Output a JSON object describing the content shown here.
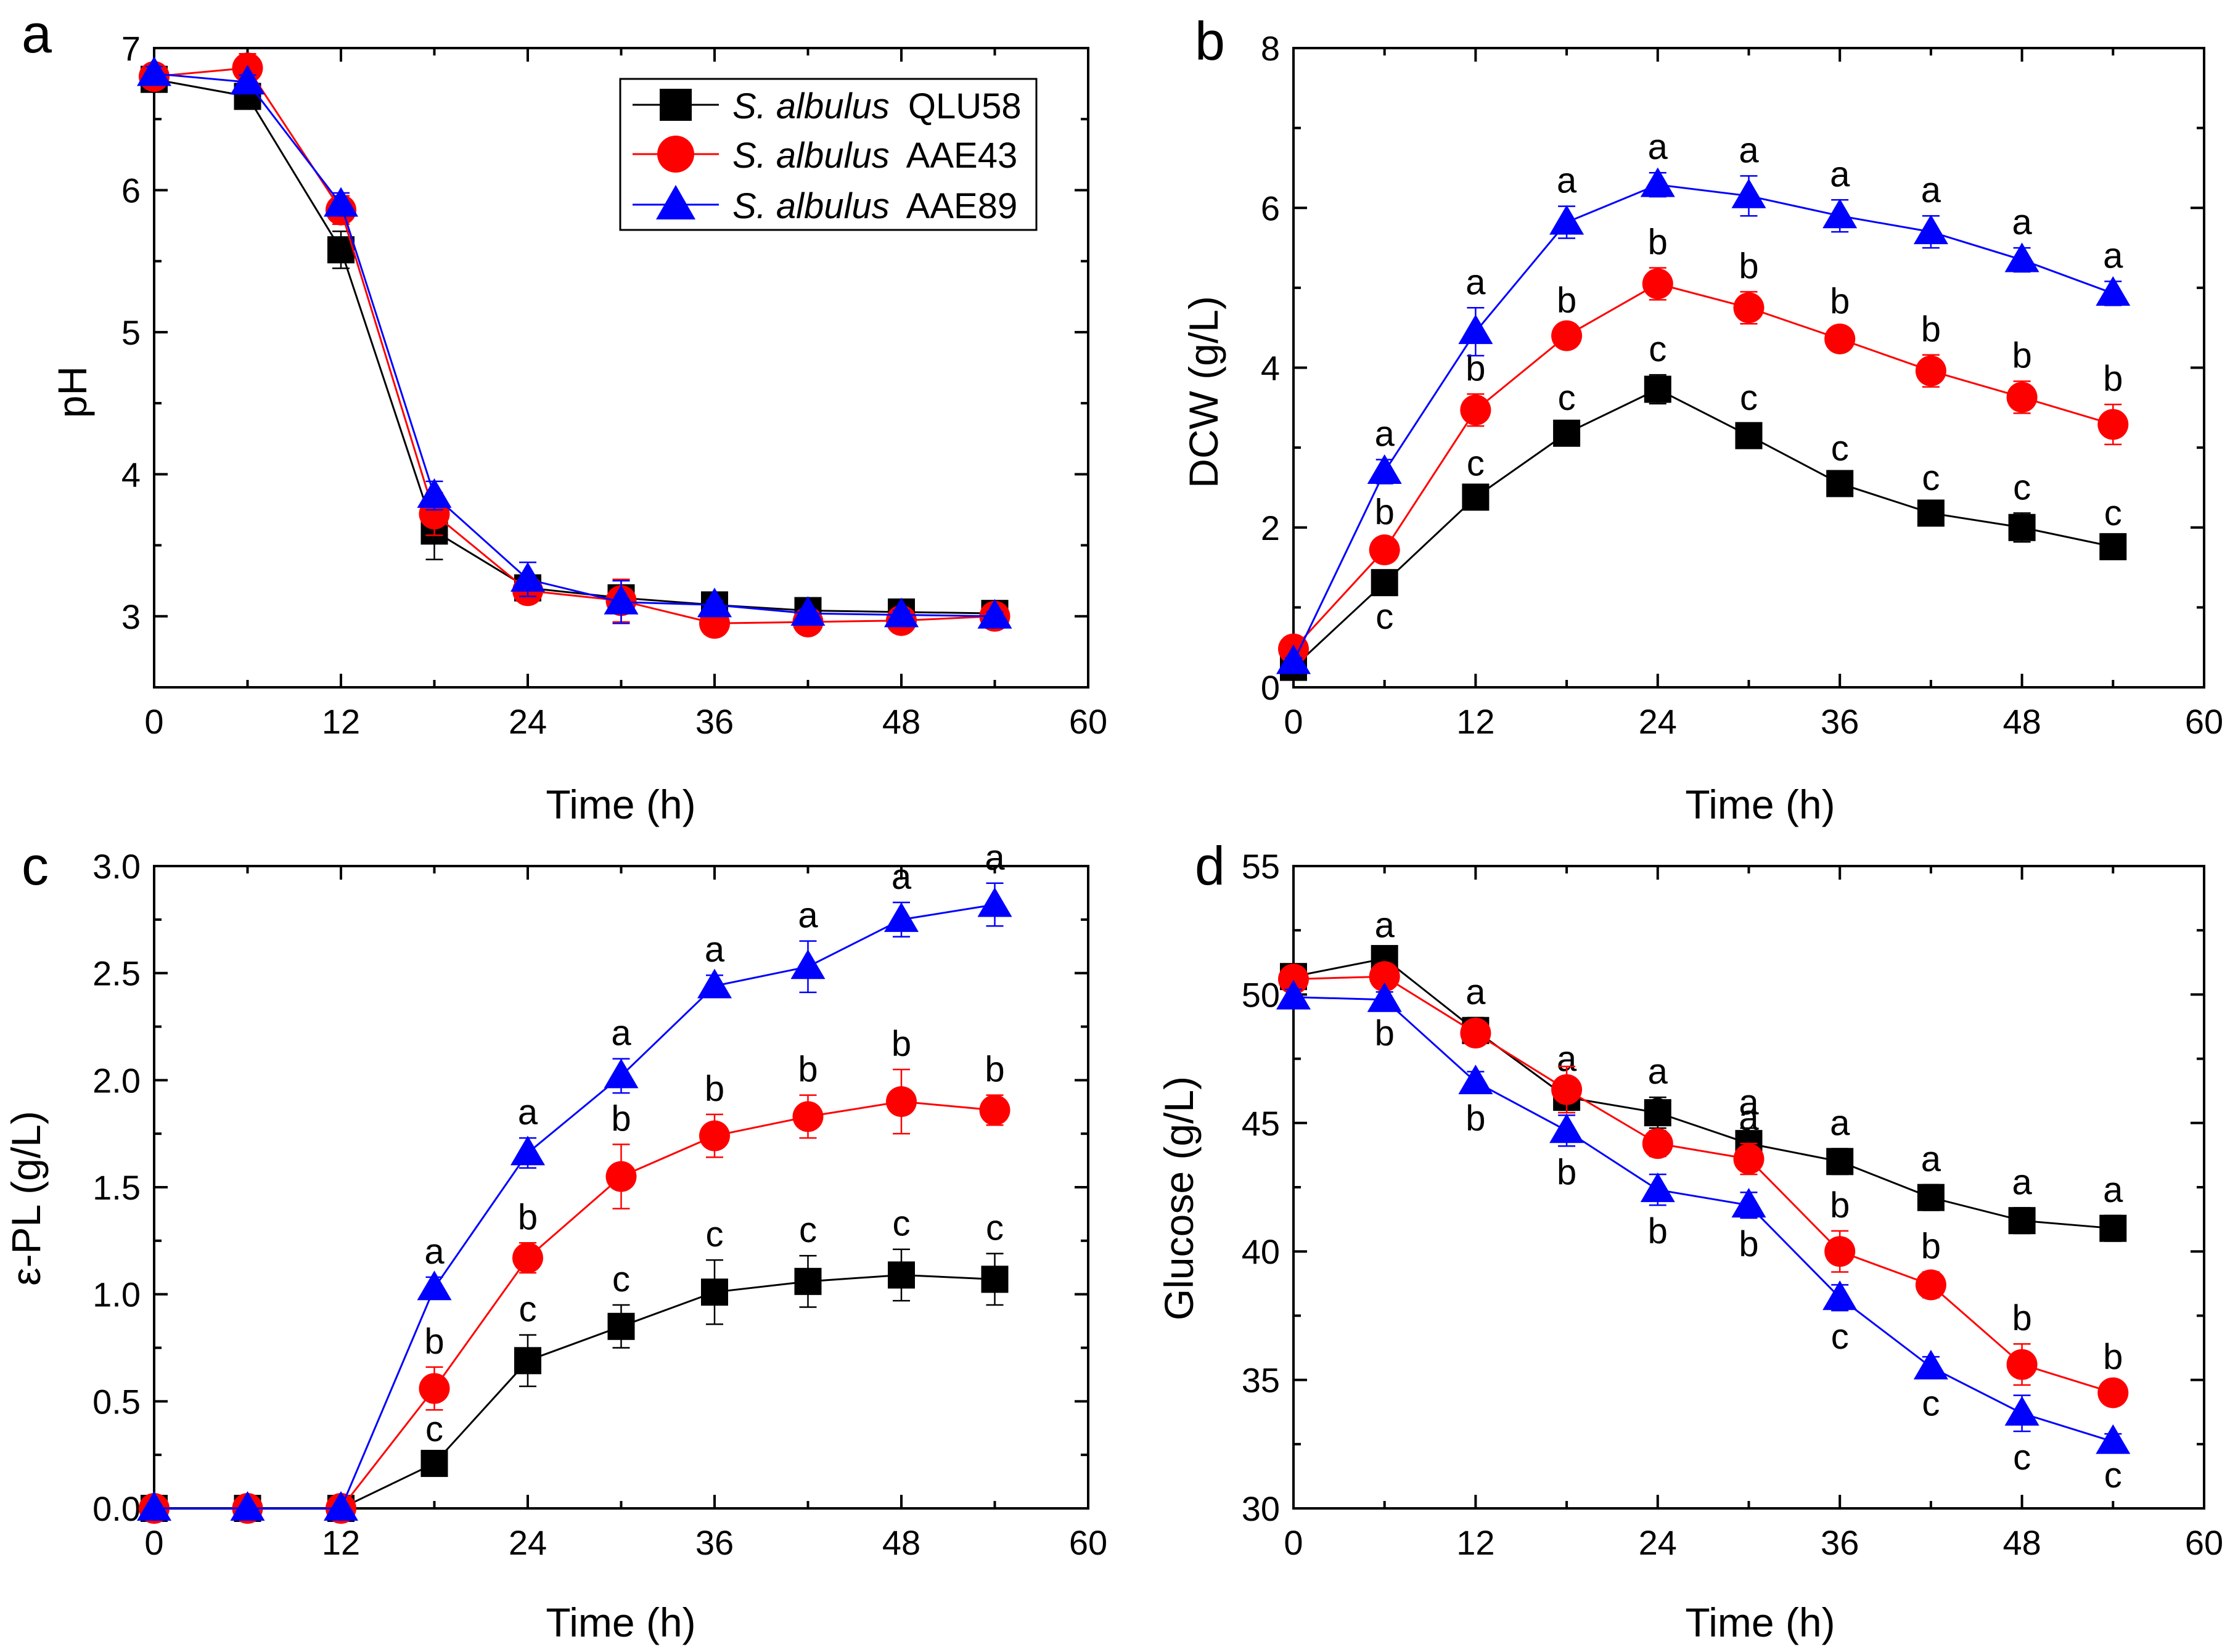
{
  "colors": {
    "QLU58": "#000000",
    "AAE43": "#ff0000",
    "AAE89": "#0000ff"
  },
  "legend": [
    {
      "italic": "S. albulus",
      "strain": "QLU58",
      "marker": "square"
    },
    {
      "italic": "S. albulus",
      "strain": "AAE43",
      "marker": "circle"
    },
    {
      "italic": "S. albulus",
      "strain": "AAE89",
      "marker": "triangle"
    }
  ],
  "chart_data": [
    {
      "panel": "a",
      "type": "line",
      "xlabel": "Time (h)",
      "ylabel": "pH",
      "xlim": [
        0,
        60
      ],
      "ylim": [
        2.5,
        7
      ],
      "xticks": [
        0,
        12,
        24,
        36,
        48,
        60
      ],
      "yticks": [
        3,
        4,
        5,
        6,
        7
      ],
      "legend_position": "top-right",
      "x": [
        0,
        6,
        12,
        18,
        24,
        30,
        36,
        42,
        48,
        54
      ],
      "series": [
        {
          "name": "QLU58",
          "marker": "square",
          "values": [
            6.78,
            6.66,
            5.58,
            3.6,
            3.2,
            3.13,
            3.08,
            3.04,
            3.03,
            3.02
          ],
          "errors": [
            0.05,
            0.05,
            0.13,
            0.2,
            0.08,
            0.06,
            0.04,
            0.03,
            0.03,
            0.03
          ],
          "labels": []
        },
        {
          "name": "AAE43",
          "marker": "circle",
          "values": [
            6.8,
            6.86,
            5.86,
            3.72,
            3.18,
            3.11,
            2.95,
            2.96,
            2.97,
            3.0
          ],
          "errors": [
            0.05,
            0.1,
            0.1,
            0.15,
            0.08,
            0.15,
            0.03,
            0.03,
            0.03,
            0.03
          ],
          "labels": []
        },
        {
          "name": "AAE89",
          "marker": "triangle",
          "values": [
            6.82,
            6.76,
            5.9,
            3.85,
            3.26,
            3.1,
            3.08,
            3.02,
            3.01,
            3.0
          ],
          "errors": [
            0.05,
            0.05,
            0.08,
            0.1,
            0.12,
            0.15,
            0.03,
            0.03,
            0.03,
            0.03
          ],
          "labels": []
        }
      ]
    },
    {
      "panel": "b",
      "type": "line",
      "xlabel": "Time (h)",
      "ylabel": "DCW (g/L)",
      "xlim": [
        0,
        60
      ],
      "ylim": [
        0,
        8
      ],
      "xticks": [
        0,
        12,
        24,
        36,
        48,
        60
      ],
      "yticks": [
        0,
        2,
        4,
        6,
        8
      ],
      "x": [
        0,
        6,
        12,
        18,
        24,
        30,
        36,
        42,
        48,
        54
      ],
      "series": [
        {
          "name": "QLU58",
          "marker": "square",
          "values": [
            0.25,
            1.31,
            2.38,
            3.18,
            3.73,
            3.15,
            2.55,
            2.18,
            2.0,
            1.76
          ],
          "errors": [
            0.05,
            0.1,
            0.1,
            0.12,
            0.18,
            0.15,
            0.12,
            0.12,
            0.18,
            0.1
          ],
          "labels": [
            "",
            "c",
            "c",
            "c",
            "c",
            "c",
            "c",
            "c",
            "c",
            "c"
          ],
          "label_pos": [
            "above",
            "below",
            "above",
            "above",
            "above",
            "above",
            "above",
            "above",
            "above",
            "above"
          ]
        },
        {
          "name": "AAE43",
          "marker": "circle",
          "values": [
            0.48,
            1.72,
            3.47,
            4.4,
            5.05,
            4.75,
            4.36,
            3.96,
            3.63,
            3.29
          ],
          "errors": [
            0.05,
            0.15,
            0.2,
            0.12,
            0.2,
            0.2,
            0.15,
            0.2,
            0.2,
            0.25
          ],
          "labels": [
            "",
            "b",
            "b",
            "b",
            "b",
            "b",
            "b",
            "b",
            "b",
            "b"
          ],
          "label_pos": [
            "above",
            "above",
            "above",
            "above",
            "above",
            "above",
            "above",
            "above",
            "above",
            "above"
          ]
        },
        {
          "name": "AAE89",
          "marker": "triangle",
          "values": [
            0.32,
            2.7,
            4.45,
            5.82,
            6.29,
            6.15,
            5.9,
            5.7,
            5.35,
            4.93
          ],
          "errors": [
            0.05,
            0.15,
            0.3,
            0.2,
            0.15,
            0.25,
            0.2,
            0.2,
            0.15,
            0.15
          ],
          "labels": [
            "",
            "a",
            "a",
            "a",
            "a",
            "a",
            "a",
            "a",
            "a",
            "a"
          ],
          "label_pos": [
            "above",
            "above",
            "above",
            "above",
            "above",
            "above",
            "above",
            "above",
            "above",
            "above"
          ]
        }
      ]
    },
    {
      "panel": "c",
      "type": "line",
      "xlabel": "Time (h)",
      "ylabel": "ε-PL (g/L)",
      "xlim": [
        0,
        60
      ],
      "ylim": [
        0,
        3
      ],
      "xticks": [
        0,
        12,
        24,
        36,
        48,
        60
      ],
      "yticks": [
        0.0,
        0.5,
        1.0,
        1.5,
        2.0,
        2.5,
        3.0
      ],
      "ytick_labels": [
        "0.0",
        "0.5",
        "1.0",
        "1.5",
        "2.0",
        "2.5",
        "3.0"
      ],
      "x": [
        0,
        6,
        12,
        18,
        24,
        30,
        36,
        42,
        48,
        54
      ],
      "series": [
        {
          "name": "QLU58",
          "marker": "square",
          "values": [
            0,
            0,
            0,
            0.21,
            0.69,
            0.85,
            1.01,
            1.06,
            1.09,
            1.07
          ],
          "errors": [
            0,
            0,
            0,
            0.04,
            0.12,
            0.1,
            0.15,
            0.12,
            0.12,
            0.12
          ],
          "labels": [
            "",
            "",
            "",
            "c",
            "c",
            "c",
            "c",
            "c",
            "c",
            "c"
          ],
          "label_pos": [
            "above",
            "above",
            "above",
            "above",
            "above",
            "above",
            "above",
            "above",
            "above",
            "above"
          ]
        },
        {
          "name": "AAE43",
          "marker": "circle",
          "values": [
            0,
            0,
            0,
            0.56,
            1.17,
            1.55,
            1.74,
            1.83,
            1.9,
            1.86
          ],
          "errors": [
            0,
            0,
            0,
            0.1,
            0.07,
            0.15,
            0.1,
            0.1,
            0.15,
            0.07
          ],
          "labels": [
            "",
            "",
            "",
            "b",
            "b",
            "b",
            "b",
            "b",
            "b",
            "b"
          ],
          "label_pos": [
            "above",
            "above",
            "above",
            "above",
            "above",
            "above",
            "above",
            "above",
            "above",
            "above"
          ]
        },
        {
          "name": "AAE89",
          "marker": "triangle",
          "values": [
            0,
            0,
            0,
            1.03,
            1.66,
            2.02,
            2.44,
            2.53,
            2.75,
            2.82
          ],
          "errors": [
            0,
            0,
            0,
            0.05,
            0.07,
            0.08,
            0.05,
            0.12,
            0.08,
            0.1
          ],
          "labels": [
            "",
            "",
            "",
            "a",
            "a",
            "a",
            "a",
            "a",
            "a",
            "a"
          ],
          "label_pos": [
            "above",
            "above",
            "above",
            "above",
            "above",
            "above",
            "above",
            "above",
            "above",
            "above"
          ]
        }
      ]
    },
    {
      "panel": "d",
      "type": "line",
      "xlabel": "Time (h)",
      "ylabel": "Glucose (g/L)",
      "xlim": [
        0,
        60
      ],
      "ylim": [
        30,
        55
      ],
      "xticks": [
        0,
        12,
        24,
        36,
        48,
        60
      ],
      "yticks": [
        30,
        35,
        40,
        45,
        50,
        55
      ],
      "x": [
        0,
        6,
        12,
        18,
        24,
        30,
        36,
        42,
        48,
        54
      ],
      "series": [
        {
          "name": "QLU58",
          "marker": "square",
          "values": [
            50.7,
            51.4,
            48.6,
            46.0,
            45.4,
            44.2,
            43.5,
            42.1,
            41.2,
            40.9
          ],
          "errors": [
            0.3,
            0.3,
            0.5,
            0.5,
            0.6,
            0.6,
            0.5,
            0.5,
            0.5,
            0.5
          ],
          "labels": [
            "",
            "a",
            "a",
            "a",
            "a",
            "a",
            "a",
            "a",
            "a",
            "a"
          ],
          "label_pos": [
            "above",
            "above",
            "above",
            "above",
            "above",
            "above",
            "above",
            "above",
            "above",
            "above"
          ]
        },
        {
          "name": "AAE43",
          "marker": "circle",
          "values": [
            50.6,
            50.7,
            48.5,
            46.3,
            44.2,
            43.6,
            40.0,
            38.7,
            35.6,
            34.5
          ],
          "errors": [
            0.4,
            0.4,
            0.4,
            0.9,
            0.5,
            0.6,
            0.8,
            0.5,
            0.8,
            0.4
          ],
          "labels": [
            "",
            "",
            "",
            "",
            "a",
            "a",
            "b",
            "b",
            "b",
            "b"
          ],
          "label_pos": [
            "above",
            "above",
            "above",
            "above",
            "above",
            "above",
            "above",
            "above",
            "above",
            "above"
          ]
        },
        {
          "name": "AAE89",
          "marker": "triangle",
          "values": [
            49.9,
            49.8,
            46.6,
            44.7,
            42.4,
            41.8,
            38.2,
            35.5,
            33.7,
            32.6
          ],
          "errors": [
            0.3,
            0.3,
            0.4,
            0.6,
            0.6,
            0.5,
            0.5,
            0.4,
            0.7,
            0.3
          ],
          "labels": [
            "",
            "b",
            "b",
            "b",
            "b",
            "b",
            "c",
            "c",
            "c",
            "c"
          ],
          "label_pos": [
            "below",
            "below",
            "below",
            "below",
            "below",
            "below",
            "below",
            "below",
            "below",
            "below"
          ]
        }
      ]
    }
  ]
}
